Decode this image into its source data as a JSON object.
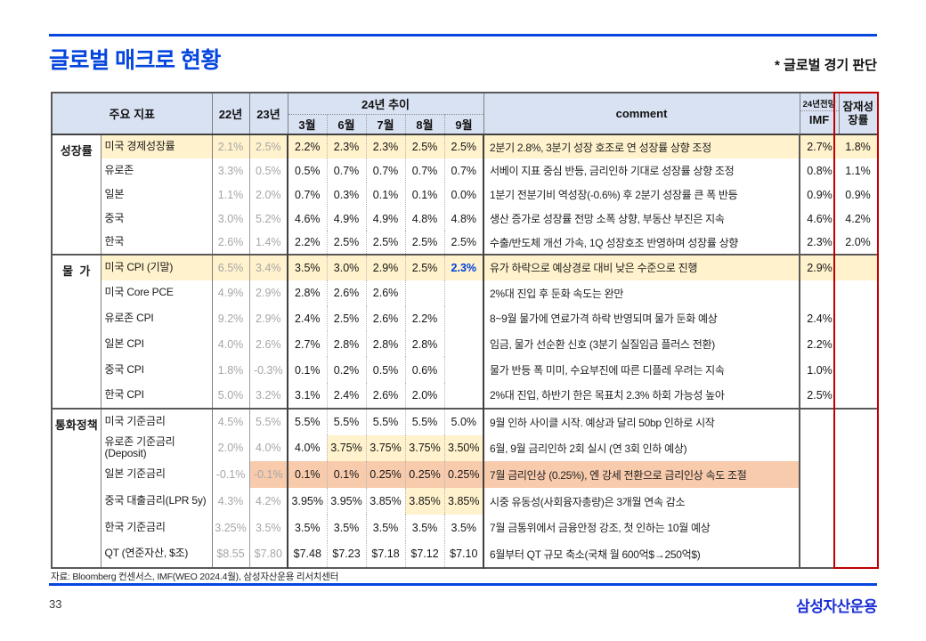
{
  "page": {
    "title": "글로벌 매크로 현황",
    "subtitle": "* 글로벌 경기 판단",
    "source": "자료: Bloomberg 컨센서스, IMF(WEO 2024.4월), 삼성자산운용 리서치센터",
    "page_number": "33",
    "logo": "삼성자산운용"
  },
  "colors": {
    "accent_blue": "#0546DE",
    "header_bg": "#D9E2F3",
    "highlight_cream": "#FFF2CC",
    "highlight_orange": "#F8CBAD",
    "red_box": "#C00000",
    "value_blue": "#0040DD",
    "muted_gray": "#A6A6A6"
  },
  "table": {
    "header": {
      "indicator": "주요 지표",
      "y22": "22년",
      "y23": "23년",
      "trend": "24년 추이",
      "months": [
        "3월",
        "6월",
        "7월",
        "8월",
        "9월"
      ],
      "comment": "comment",
      "outlook_small": "24년전망",
      "outlook_main": "IMF",
      "potential": "잠재성장률"
    },
    "sections": [
      {
        "name": "성장률",
        "rows": [
          {
            "label": "미국 경제성장률",
            "y22": "2.1%",
            "y23": "2.5%",
            "months": [
              "2.2%",
              "2.3%",
              "2.3%",
              "2.5%",
              "2.5%"
            ],
            "comment": "2분기 2.8%, 3분기 성장 호조로 연 성장률 상향 조정",
            "imf": "2.7%",
            "potential": "1.8%",
            "hl": {
              "color": "cream",
              "cells": [
                "label",
                "y22",
                "y23",
                "m0",
                "m1",
                "m2",
                "m3",
                "m4",
                "comment",
                "imf",
                "potential"
              ]
            }
          },
          {
            "label": "유로존",
            "y22": "3.3%",
            "y23": "0.5%",
            "months": [
              "0.5%",
              "0.7%",
              "0.7%",
              "0.7%",
              "0.7%"
            ],
            "comment": "서베이 지표 중심 반등, 금리인하 기대로 성장률 상향 조정",
            "imf": "0.8%",
            "potential": "1.1%"
          },
          {
            "label": "일본",
            "y22": "1.1%",
            "y23": "2.0%",
            "months": [
              "0.7%",
              "0.3%",
              "0.1%",
              "0.1%",
              "0.0%"
            ],
            "comment": "1분기 전분기비 역성장(-0.6%) 후 2분기 성장률 큰 폭 반등",
            "imf": "0.9%",
            "potential": "0.9%"
          },
          {
            "label": "중국",
            "y22": "3.0%",
            "y23": "5.2%",
            "months": [
              "4.6%",
              "4.9%",
              "4.9%",
              "4.8%",
              "4.8%"
            ],
            "comment": "생산 증가로 성장률 전망 소폭 상향, 부동산 부진은 지속",
            "imf": "4.6%",
            "potential": "4.2%"
          },
          {
            "label": "한국",
            "y22": "2.6%",
            "y23": "1.4%",
            "months": [
              "2.2%",
              "2.5%",
              "2.5%",
              "2.5%",
              "2.5%"
            ],
            "comment": "수출/반도체 개선 가속, 1Q 성장호조 반영하며 성장률 상향",
            "imf": "2.3%",
            "potential": "2.0%"
          }
        ]
      },
      {
        "name": "물  가",
        "rows": [
          {
            "label": "미국 CPI (기말)",
            "y22": "6.5%",
            "y23": "3.4%",
            "months": [
              "3.5%",
              "3.0%",
              "2.9%",
              "2.5%",
              "2.3%"
            ],
            "comment": "유가 하락으로 예상경로 대비 낮은 수준으로 진행",
            "imf": "2.9%",
            "potential": "",
            "hl": {
              "color": "cream",
              "cells": [
                "label",
                "y22",
                "y23",
                "m0",
                "m1",
                "m2",
                "m3",
                "m4",
                "comment",
                "imf",
                "potential"
              ]
            },
            "blue_cells": [
              "m4"
            ]
          },
          {
            "label": "미국 Core PCE",
            "y22": "4.9%",
            "y23": "2.9%",
            "months": [
              "2.8%",
              "2.6%",
              "2.6%",
              "",
              ""
            ],
            "comment": "2%대 진입 후 둔화 속도는 완만",
            "imf": "",
            "potential": ""
          },
          {
            "label": "유로존 CPI",
            "y22": "9.2%",
            "y23": "2.9%",
            "months": [
              "2.4%",
              "2.5%",
              "2.6%",
              "2.2%",
              ""
            ],
            "comment": "8~9월 물가에 연료가격 하락 반영되며 물가 둔화 예상",
            "imf": "2.4%",
            "potential": ""
          },
          {
            "label": "일본 CPI",
            "y22": "4.0%",
            "y23": "2.6%",
            "months": [
              "2.7%",
              "2.8%",
              "2.8%",
              "2.8%",
              ""
            ],
            "comment": "임금, 물가 선순환 신호 (3분기 실질임금 플러스 전환)",
            "imf": "2.2%",
            "potential": ""
          },
          {
            "label": "중국 CPI",
            "y22": "1.8%",
            "y23": "-0.3%",
            "months": [
              "0.1%",
              "0.2%",
              "0.5%",
              "0.6%",
              ""
            ],
            "comment": "물가 반등 폭 미미, 수요부진에 따른 디플레 우려는 지속",
            "imf": "1.0%",
            "potential": ""
          },
          {
            "label": "한국 CPI",
            "y22": "5.0%",
            "y23": "3.2%",
            "months": [
              "3.1%",
              "2.4%",
              "2.6%",
              "2.0%",
              ""
            ],
            "comment": "2%대 진입, 하반기 한은 목표치 2.3% 하회 가능성 높아",
            "imf": "2.5%",
            "potential": ""
          }
        ]
      },
      {
        "name": "통화정책",
        "rows": [
          {
            "label": "미국 기준금리",
            "y22": "4.5%",
            "y23": "5.5%",
            "months": [
              "5.5%",
              "5.5%",
              "5.5%",
              "5.5%",
              "5.0%"
            ],
            "comment": "9월 인하 사이클 시작. 예상과 달리 50bp 인하로 시작",
            "imf": "",
            "potential": ""
          },
          {
            "label": "유로존 기준금리 (Deposit)",
            "y22": "2.0%",
            "y23": "4.0%",
            "months": [
              "4.0%",
              "3.75%",
              "3.75%",
              "3.75%",
              "3.50%"
            ],
            "comment": "6월, 9월 금리인하  2회 실시 (연 3회 인하 예상)",
            "imf": "",
            "potential": "",
            "hl": {
              "color": "cream",
              "cells": [
                "m1",
                "m2",
                "m3",
                "m4"
              ]
            }
          },
          {
            "label": "일본 기준금리",
            "y22": "-0.1%",
            "y23": "-0.1%",
            "months": [
              "0.1%",
              "0.1%",
              "0.25%",
              "0.25%",
              "0.25%"
            ],
            "comment": "7월 금리인상 (0.25%), 엔 강세 전환으로 금리인상 속도 조절",
            "imf": "",
            "potential": "",
            "hl": {
              "color": "orange",
              "cells": [
                "y23",
                "m0",
                "m1",
                "m2",
                "m3",
                "m4",
                "comment"
              ]
            }
          },
          {
            "label": "중국 대출금리(LPR 5y)",
            "y22": "4.3%",
            "y23": "4.2%",
            "months": [
              "3.95%",
              "3.95%",
              "3.85%",
              "3.85%",
              "3.85%"
            ],
            "comment": "시중 유동성(사회융자총량)은 3개월 연속 감소",
            "imf": "",
            "potential": "",
            "hl": {
              "color": "cream",
              "cells": [
                "m3",
                "m4"
              ]
            }
          },
          {
            "label": "한국 기준금리",
            "y22": "3.25%",
            "y23": "3.5%",
            "months": [
              "3.5%",
              "3.5%",
              "3.5%",
              "3.5%",
              "3.5%"
            ],
            "comment": "7월 금통위에서 금융안정 강조, 첫 인하는 10월 예상",
            "imf": "",
            "potential": ""
          },
          {
            "label": "QT (연준자산, $조)",
            "y22": "$8.55",
            "y23": "$7.80",
            "months": [
              "$7.48",
              "$7.23",
              "$7.18",
              "$7.12",
              "$7.10"
            ],
            "comment": "6월부터 QT 규모 축소(국채 월 600억$→250억$)",
            "imf": "",
            "potential": ""
          }
        ]
      }
    ]
  }
}
